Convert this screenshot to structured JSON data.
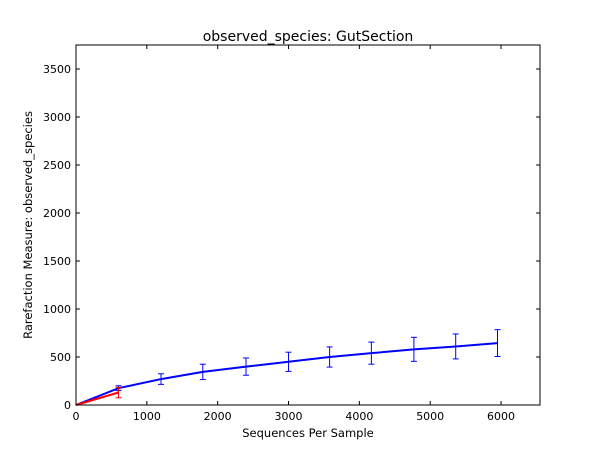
{
  "chart_data": {
    "type": "line",
    "title": "observed_species: GutSection",
    "xlabel": "Sequences Per Sample",
    "ylabel": "Rarefaction Measure: observed_species",
    "xlim": [
      0,
      6550
    ],
    "ylim": [
      0,
      3750
    ],
    "x_ticks": [
      0,
      1000,
      2000,
      3000,
      4000,
      5000,
      6000
    ],
    "y_ticks": [
      0,
      500,
      1000,
      1500,
      2000,
      2500,
      3000,
      3500
    ],
    "grid": false,
    "legend": "none",
    "series": [
      {
        "color": "#0000ff",
        "x": [
          0,
          600,
          1200,
          1790,
          2400,
          3000,
          3580,
          4170,
          4770,
          5360,
          5950
        ],
        "y": [
          0,
          175,
          270,
          345,
          400,
          450,
          500,
          540,
          580,
          610,
          645
        ],
        "err": [
          0,
          25,
          55,
          80,
          90,
          100,
          105,
          115,
          125,
          130,
          140
        ]
      },
      {
        "color": "#ff0000",
        "x": [
          0,
          600
        ],
        "y": [
          0,
          130
        ],
        "err": [
          0,
          55
        ]
      }
    ]
  }
}
